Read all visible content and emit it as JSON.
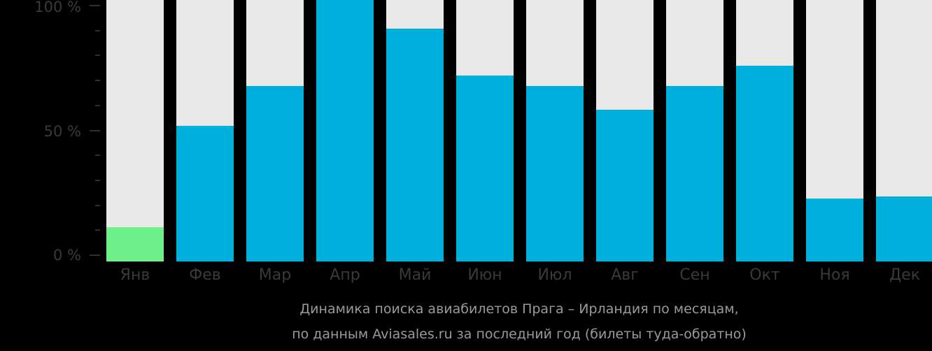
{
  "chart_data": {
    "type": "bar",
    "title": "Динамика поиска авиабилетов Прага – Ирландия по месяцам,",
    "subtitle": "по данным Aviasales.ru за последний год (билеты туда-обратно)",
    "xlabel": "",
    "ylabel": "",
    "ylim": [
      0,
      100
    ],
    "yticks": [
      "0 %",
      "50 %",
      "100 %"
    ],
    "categories": [
      "Янв",
      "Фев",
      "Мар",
      "Апр",
      "Май",
      "Июн",
      "Июл",
      "Авг",
      "Сен",
      "Окт",
      "Ноя",
      "Дек"
    ],
    "values": [
      13,
      52,
      67,
      100,
      89,
      71,
      67,
      58,
      67,
      75,
      24,
      25
    ],
    "colors": {
      "bar": "#00b0dc",
      "lowest": "#6ef08a",
      "background_track": "#e8e8e8"
    },
    "grid": false,
    "legend": null
  },
  "axis": {
    "y100": "100 %",
    "y50": "50 %",
    "y0": "0 %"
  },
  "months": [
    "Янв",
    "Фев",
    "Мар",
    "Апр",
    "Май",
    "Июн",
    "Июл",
    "Авг",
    "Сен",
    "Окт",
    "Ноя",
    "Дек"
  ],
  "caption": {
    "line1": "Динамика поиска авиабилетов Прага – Ирландия по месяцам,",
    "line2": "по данным Aviasales.ru за последний год (билеты туда-обратно)"
  }
}
